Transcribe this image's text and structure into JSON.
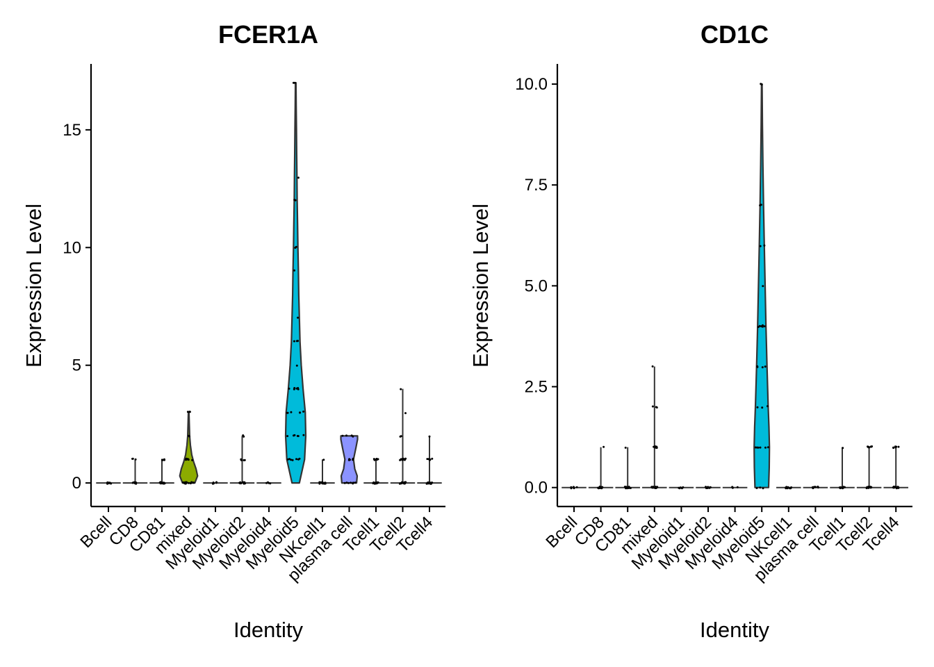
{
  "chart_data": [
    {
      "type": "violin",
      "title": "FCER1A",
      "xlabel": "Identity",
      "ylabel": "Expression Level",
      "ylim": [
        -1.0,
        17.8
      ],
      "yticks": [
        0,
        5,
        10,
        15
      ],
      "ytick_labels": [
        "0",
        "5",
        "10",
        "15"
      ],
      "grid": false,
      "legend": "none",
      "categories": [
        "Bcell",
        "CD8",
        "CD81",
        "mixed",
        "Myeloid1",
        "Myeloid2",
        "Myeloid4",
        "Myeloid5",
        "NKcell1",
        "plasma cell",
        "Tcell1",
        "Tcell2",
        "Tcell4"
      ],
      "groups": [
        {
          "name": "Bcell",
          "color": "#F8766D",
          "max": 0,
          "shape": [
            [
              0,
              0.05
            ]
          ],
          "points": [
            0,
            0,
            0,
            0,
            0,
            0,
            0,
            0
          ]
        },
        {
          "name": "CD8",
          "color": "#E18A00",
          "max": 1,
          "shape": [
            [
              0,
              0.05
            ],
            [
              1,
              0.02
            ]
          ],
          "points": [
            0,
            0,
            0,
            0,
            0,
            0,
            0,
            0,
            0,
            0,
            1,
            1,
            1
          ]
        },
        {
          "name": "CD81",
          "color": "#BE9C00",
          "max": 1,
          "shape": [
            [
              0,
              0.05
            ],
            [
              1,
              0.02
            ]
          ],
          "points": [
            0,
            0,
            0,
            0,
            0,
            0,
            0,
            0,
            0,
            0,
            1,
            1,
            1,
            1,
            1,
            1
          ]
        },
        {
          "name": "mixed",
          "color": "#8CAB00",
          "max": 3,
          "shape": [
            [
              0,
              0.5
            ],
            [
              0.3,
              0.72
            ],
            [
              0.6,
              0.6
            ],
            [
              0.9,
              0.4
            ],
            [
              1.2,
              0.25
            ],
            [
              1.6,
              0.14
            ],
            [
              2,
              0.08
            ],
            [
              2.5,
              0.05
            ],
            [
              3,
              0.02
            ]
          ],
          "points": [
            0,
            0,
            0,
            0,
            0,
            0,
            0,
            0,
            0,
            0,
            0,
            0,
            0,
            0,
            0,
            1,
            1,
            1,
            1,
            1,
            1,
            1,
            1,
            1,
            1,
            1,
            1,
            1,
            1,
            2,
            2,
            3,
            3,
            3
          ]
        },
        {
          "name": "Myeloid1",
          "color": "#24B700",
          "max": 0,
          "shape": [
            [
              0,
              0.05
            ]
          ],
          "points": [
            0,
            0,
            0,
            0,
            0
          ]
        },
        {
          "name": "Myeloid2",
          "color": "#00BE70",
          "max": 2,
          "shape": [
            [
              0,
              0.05
            ],
            [
              1,
              0.02
            ],
            [
              2,
              0.02
            ]
          ],
          "points": [
            0,
            0,
            0,
            0,
            0,
            0,
            0,
            0,
            0,
            0,
            1,
            1,
            1,
            1,
            1,
            2,
            2
          ]
        },
        {
          "name": "Myeloid4",
          "color": "#00C1AB",
          "max": 0,
          "shape": [
            [
              0,
              0.05
            ]
          ],
          "points": [
            0,
            0,
            0,
            0
          ]
        },
        {
          "name": "Myeloid5",
          "color": "#00BBDA",
          "max": 17,
          "shape": [
            [
              0,
              0.3
            ],
            [
              1,
              0.72
            ],
            [
              2,
              0.82
            ],
            [
              3,
              0.78
            ],
            [
              4,
              0.6
            ],
            [
              5,
              0.45
            ],
            [
              6,
              0.35
            ],
            [
              7,
              0.3
            ],
            [
              8,
              0.25
            ],
            [
              9,
              0.22
            ],
            [
              10,
              0.18
            ],
            [
              11,
              0.15
            ],
            [
              12,
              0.12
            ],
            [
              13,
              0.1
            ],
            [
              14,
              0.08
            ],
            [
              15,
              0.06
            ],
            [
              16,
              0.04
            ],
            [
              17,
              0.02
            ]
          ],
          "points": [
            1,
            1,
            1,
            1,
            1,
            1,
            1,
            2,
            2,
            2,
            2,
            2,
            2,
            3,
            3,
            3,
            3,
            3,
            3,
            4,
            4,
            4,
            4,
            4,
            4,
            5,
            6,
            6,
            6,
            7,
            9,
            10,
            10,
            12,
            12,
            13,
            17,
            17
          ]
        },
        {
          "name": "NKcell1",
          "color": "#00ACFC",
          "max": 1,
          "shape": [
            [
              0,
              0.05
            ],
            [
              1,
              0.02
            ]
          ],
          "points": [
            0,
            0,
            0,
            0,
            0,
            0,
            0,
            0,
            0,
            0,
            0,
            1
          ]
        },
        {
          "name": "plasma cell",
          "color": "#8B93FF",
          "max": 2,
          "shape": [
            [
              0,
              0.6
            ],
            [
              0.3,
              0.65
            ],
            [
              0.6,
              0.45
            ],
            [
              1,
              0.35
            ],
            [
              1.5,
              0.55
            ],
            [
              1.85,
              0.68
            ],
            [
              2,
              0.68
            ]
          ],
          "points": [
            0,
            0,
            0,
            0,
            0,
            0,
            0,
            1,
            1,
            1,
            1,
            1,
            2,
            2,
            2,
            2
          ]
        },
        {
          "name": "Tcell1",
          "color": "#D575FE",
          "max": 1,
          "shape": [
            [
              0,
              0.05
            ],
            [
              1,
              0.02
            ]
          ],
          "points": [
            0,
            0,
            0,
            0,
            0,
            0,
            0,
            0,
            0,
            0,
            0,
            0,
            1,
            1,
            1,
            1,
            1,
            1
          ]
        },
        {
          "name": "Tcell2",
          "color": "#F962DD",
          "max": 4,
          "shape": [
            [
              0,
              0.05
            ],
            [
              1,
              0.03
            ],
            [
              2,
              0.02
            ],
            [
              3,
              0.02
            ],
            [
              4,
              0.02
            ]
          ],
          "points": [
            0,
            0,
            0,
            0,
            0,
            0,
            0,
            0,
            0,
            0,
            0,
            0,
            0,
            0,
            1,
            1,
            1,
            1,
            1,
            1,
            1,
            1,
            1,
            1,
            1,
            2,
            2,
            3,
            4
          ]
        },
        {
          "name": "Tcell4",
          "color": "#FF65AC",
          "max": 2,
          "shape": [
            [
              0,
              0.05
            ],
            [
              1,
              0.02
            ],
            [
              2,
              0.02
            ]
          ],
          "points": [
            0,
            0,
            0,
            0,
            0,
            0,
            0,
            0,
            0,
            0,
            0,
            0,
            1,
            1,
            1,
            1,
            1,
            1,
            2
          ]
        }
      ]
    },
    {
      "type": "violin",
      "title": "CD1C",
      "xlabel": "Identity",
      "ylabel": "Expression Level",
      "ylim": [
        -0.47,
        10.5
      ],
      "yticks": [
        0,
        2.5,
        5,
        7.5,
        10
      ],
      "ytick_labels": [
        "0.0",
        "2.5",
        "5.0",
        "7.5",
        "10.0"
      ],
      "grid": false,
      "legend": "none",
      "categories": [
        "Bcell",
        "CD8",
        "CD81",
        "mixed",
        "Myeloid1",
        "Myeloid2",
        "Myeloid4",
        "Myeloid5",
        "NKcell1",
        "plasma cell",
        "Tcell1",
        "Tcell2",
        "Tcell4"
      ],
      "groups": [
        {
          "name": "Bcell",
          "color": "#F8766D",
          "max": 0,
          "shape": [
            [
              0,
              0.05
            ]
          ],
          "points": [
            0,
            0,
            0,
            0,
            0,
            0
          ]
        },
        {
          "name": "CD8",
          "color": "#E18A00",
          "max": 1,
          "shape": [
            [
              0,
              0.05
            ],
            [
              1,
              0.02
            ]
          ],
          "points": [
            0,
            0,
            0,
            0,
            0,
            0,
            0,
            0,
            0,
            0,
            0,
            0,
            1
          ]
        },
        {
          "name": "CD81",
          "color": "#BE9C00",
          "max": 1,
          "shape": [
            [
              0,
              0.05
            ],
            [
              1,
              0.02
            ]
          ],
          "points": [
            0,
            0,
            0,
            0,
            0,
            0,
            0,
            0,
            0,
            0,
            0,
            0,
            0,
            0,
            0,
            1
          ]
        },
        {
          "name": "mixed",
          "color": "#8CAB00",
          "max": 3,
          "shape": [
            [
              0,
              0.05
            ],
            [
              1,
              0.03
            ],
            [
              2,
              0.02
            ],
            [
              3,
              0.02
            ]
          ],
          "points": [
            0,
            0,
            0,
            0,
            0,
            0,
            0,
            0,
            0,
            0,
            0,
            0,
            0,
            1,
            1,
            1,
            1,
            1,
            1,
            1,
            1,
            2,
            2,
            2,
            3
          ]
        },
        {
          "name": "Myeloid1",
          "color": "#24B700",
          "max": 0,
          "shape": [
            [
              0,
              0.05
            ]
          ],
          "points": [
            0,
            0,
            0,
            0,
            0
          ]
        },
        {
          "name": "Myeloid2",
          "color": "#00BE70",
          "max": 0,
          "shape": [
            [
              0,
              0.05
            ]
          ],
          "points": [
            0,
            0,
            0,
            0,
            0,
            0,
            0,
            0,
            0,
            0,
            0,
            0,
            0
          ]
        },
        {
          "name": "Myeloid4",
          "color": "#00C1AB",
          "max": 0,
          "shape": [
            [
              0,
              0.05
            ]
          ],
          "points": [
            0,
            0,
            0,
            0
          ]
        },
        {
          "name": "Myeloid5",
          "color": "#00BBDA",
          "max": 10,
          "shape": [
            [
              0,
              0.55
            ],
            [
              0.5,
              0.6
            ],
            [
              1,
              0.62
            ],
            [
              1.5,
              0.58
            ],
            [
              2,
              0.52
            ],
            [
              3,
              0.42
            ],
            [
              4,
              0.34
            ],
            [
              5,
              0.27
            ],
            [
              6,
              0.2
            ],
            [
              7,
              0.14
            ],
            [
              8,
              0.09
            ],
            [
              9,
              0.05
            ],
            [
              10,
              0.02
            ]
          ],
          "points": [
            0,
            0,
            0,
            1,
            1,
            1,
            1,
            1,
            1,
            2,
            2,
            2,
            3,
            3,
            3,
            3,
            4,
            4,
            4,
            4,
            4,
            4,
            4,
            5,
            6,
            6,
            7,
            7,
            10,
            10
          ]
        },
        {
          "name": "NKcell1",
          "color": "#00ACFC",
          "max": 0,
          "shape": [
            [
              0,
              0.05
            ]
          ],
          "points": [
            0,
            0,
            0,
            0,
            0,
            0,
            0,
            0,
            0,
            0,
            0,
            0
          ]
        },
        {
          "name": "plasma cell",
          "color": "#8B93FF",
          "max": 0,
          "shape": [
            [
              0,
              0.05
            ]
          ],
          "points": [
            0,
            0,
            0,
            0,
            0,
            0,
            0,
            0,
            0,
            0
          ]
        },
        {
          "name": "Tcell1",
          "color": "#D575FE",
          "max": 1,
          "shape": [
            [
              0,
              0.05
            ],
            [
              1,
              0.02
            ]
          ],
          "points": [
            0,
            0,
            0,
            0,
            0,
            0,
            0,
            0,
            0,
            0,
            0,
            0,
            0,
            1
          ]
        },
        {
          "name": "Tcell2",
          "color": "#F962DD",
          "max": 1,
          "shape": [
            [
              0,
              0.05
            ],
            [
              1,
              0.03
            ]
          ],
          "points": [
            0,
            0,
            0,
            0,
            0,
            0,
            0,
            0,
            0,
            0,
            0,
            0,
            0,
            0,
            0,
            0,
            1,
            1,
            1,
            1,
            1,
            1,
            1,
            1
          ]
        },
        {
          "name": "Tcell4",
          "color": "#FF65AC",
          "max": 1,
          "shape": [
            [
              0,
              0.05
            ],
            [
              1,
              0.03
            ]
          ],
          "points": [
            0,
            0,
            0,
            0,
            0,
            0,
            0,
            0,
            0,
            0,
            0,
            0,
            0,
            0,
            1,
            1,
            1,
            1,
            1,
            1
          ]
        }
      ]
    }
  ]
}
